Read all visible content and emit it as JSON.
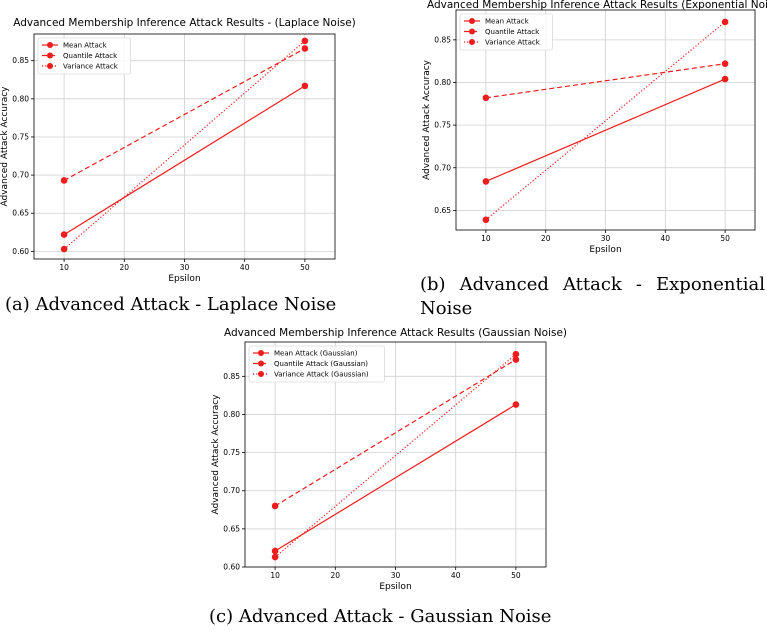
{
  "colors": {
    "line": "#ee1c1c",
    "grid": "#d0d0d0",
    "axis": "#000000"
  },
  "captions": {
    "a": "(a) Advanced Attack - Laplace Noise",
    "b_label": "(b)",
    "b_w1": "Advanced",
    "b_w2": "Attack",
    "b_w3": "-",
    "b_w4": "Exponential",
    "b_line2": "Noise",
    "c": "(c) Advanced Attack - Gaussian Noise"
  },
  "chart_data": [
    {
      "type": "line",
      "title": "Advanced Membership Inference Attack Results - (Laplace Noise)",
      "xlabel": "Epsilon",
      "ylabel": "Advanced Attack Accuracy",
      "x": [
        10,
        50
      ],
      "xlim": [
        5,
        55
      ],
      "ylim": [
        0.59,
        0.885
      ],
      "xticks": [
        10,
        20,
        30,
        40,
        50
      ],
      "yticks": [
        0.6,
        0.65,
        0.7,
        0.75,
        0.8,
        0.85
      ],
      "grid": true,
      "legend": "top-left",
      "series": [
        {
          "name": "Mean Attack",
          "values": [
            0.622,
            0.817
          ],
          "style": "solid"
        },
        {
          "name": "Quantile Attack",
          "values": [
            0.693,
            0.866
          ],
          "style": "dashed"
        },
        {
          "name": "Variance Attack",
          "values": [
            0.603,
            0.876
          ],
          "style": "dotted"
        }
      ]
    },
    {
      "type": "line",
      "title": "Advanced Membership Inference Attack Results (Exponential Noise)",
      "xlabel": "Epsilon",
      "ylabel": "Advanced Attack Accuracy",
      "x": [
        10,
        50
      ],
      "xlim": [
        5,
        55
      ],
      "ylim": [
        0.627,
        0.885
      ],
      "xticks": [
        10,
        20,
        30,
        40,
        50
      ],
      "yticks": [
        0.65,
        0.7,
        0.75,
        0.8,
        0.85
      ],
      "grid": true,
      "legend": "top-left",
      "series": [
        {
          "name": "Mean Attack",
          "values": [
            0.684,
            0.804
          ],
          "style": "solid"
        },
        {
          "name": "Quantile Attack",
          "values": [
            0.782,
            0.822
          ],
          "style": "dashed"
        },
        {
          "name": "Variance Attack",
          "values": [
            0.639,
            0.871
          ],
          "style": "dotted"
        }
      ]
    },
    {
      "type": "line",
      "title": "Advanced Membership Inference Attack Results (Gaussian Noise)",
      "xlabel": "Epsilon",
      "ylabel": "Advanced Attack Accuracy",
      "x": [
        10,
        50
      ],
      "xlim": [
        5,
        55
      ],
      "ylim": [
        0.6,
        0.895
      ],
      "xticks": [
        10,
        20,
        30,
        40,
        50
      ],
      "yticks": [
        0.6,
        0.65,
        0.7,
        0.75,
        0.8,
        0.85
      ],
      "grid": true,
      "legend": "top-left",
      "series": [
        {
          "name": "Mean Attack (Gaussian)",
          "values": [
            0.621,
            0.813
          ],
          "style": "solid"
        },
        {
          "name": "Quantile Attack (Gaussian)",
          "values": [
            0.68,
            0.872
          ],
          "style": "dashed"
        },
        {
          "name": "Variance Attack (Gaussian)",
          "values": [
            0.613,
            0.879
          ],
          "style": "dotted"
        }
      ]
    }
  ]
}
